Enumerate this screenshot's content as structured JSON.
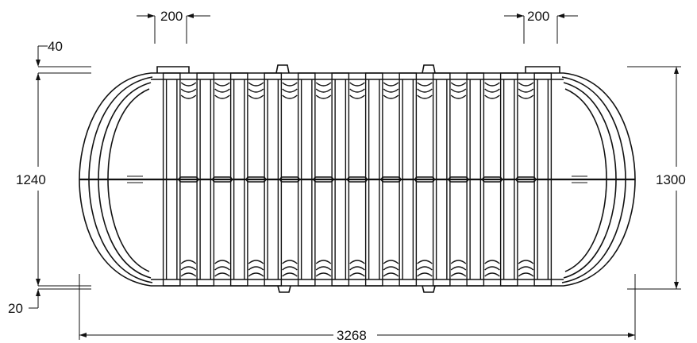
{
  "drawing": {
    "dimensions": {
      "top_left_rib_width": "200",
      "top_right_rib_width": "200",
      "top_offset": "40",
      "bottom_offset": "20",
      "inner_height": "1240",
      "outer_height": "1300",
      "overall_length": "3268"
    },
    "rib_count": 12,
    "line_color": "#111111",
    "background": "#ffffff"
  }
}
